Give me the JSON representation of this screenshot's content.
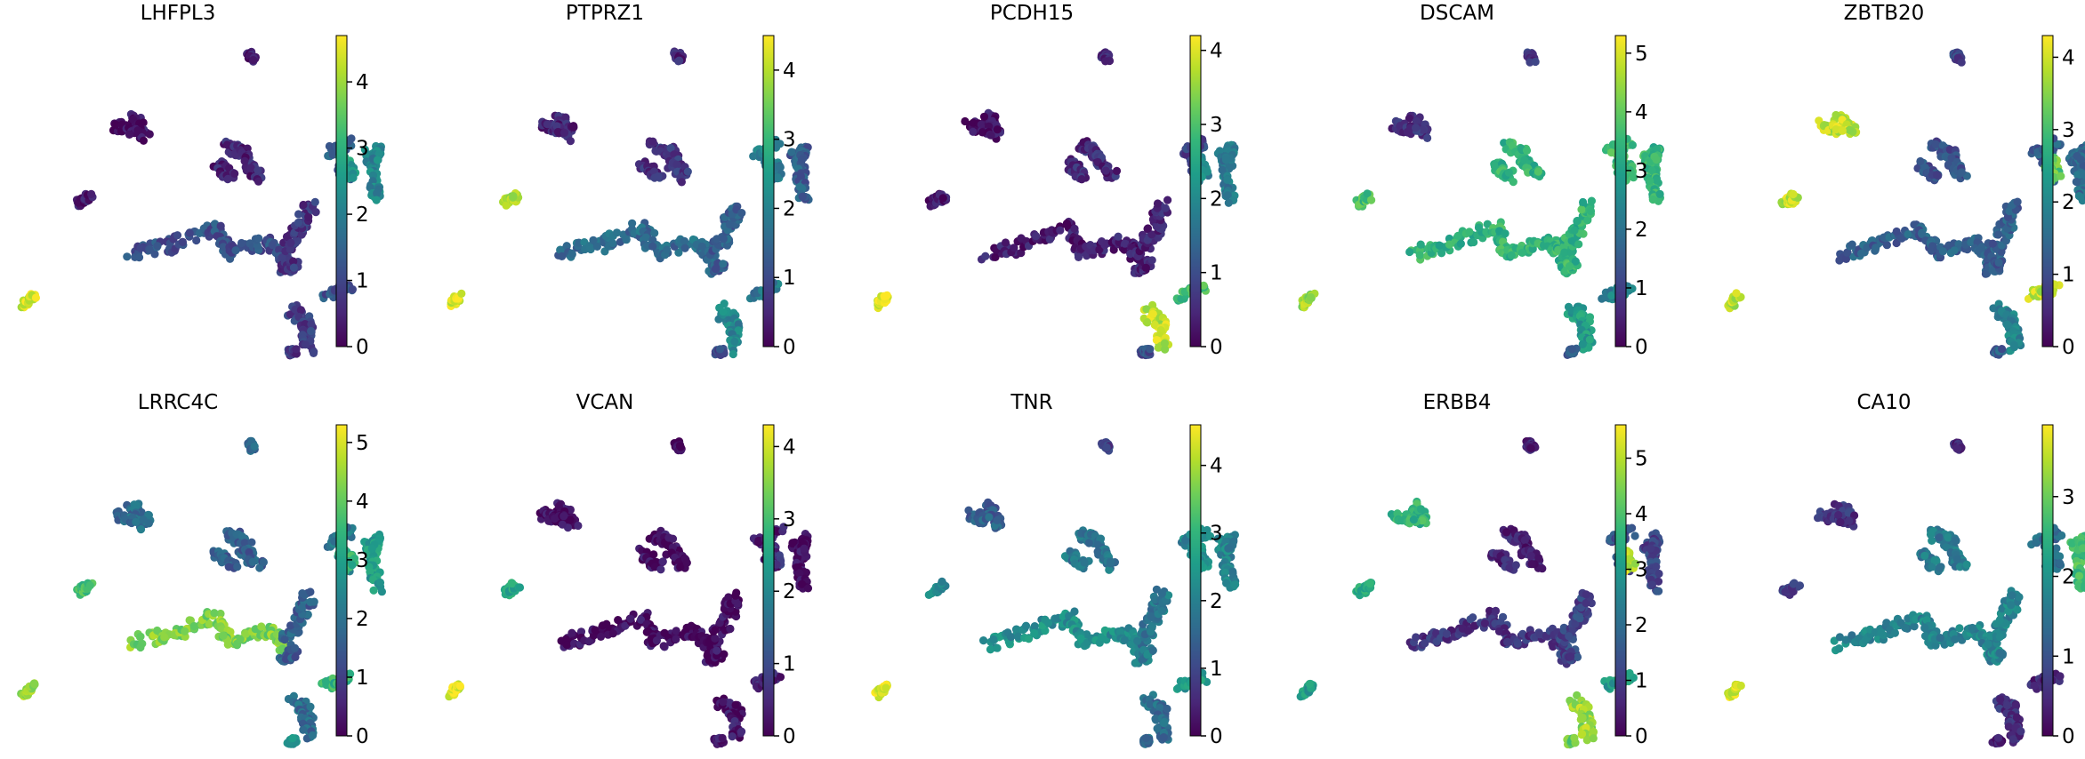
{
  "chart_data": {
    "type": "scatter",
    "description_free": true,
    "grid": "2x5",
    "colormap": "viridis",
    "colormap_stops": [
      "#440154",
      "#482878",
      "#3e4989",
      "#31688e",
      "#26828e",
      "#1f9e89",
      "#35b779",
      "#6ece58",
      "#b5de2b",
      "#fde725"
    ],
    "panels": [
      {
        "title": "LHFPL3",
        "vmin": 0,
        "vmax": 4.7,
        "ticks": [
          "0",
          "1",
          "2",
          "3",
          "4"
        ],
        "levels": {
          "A": 0.05,
          "B": 0.08,
          "C": 0.25,
          "D": 0.1,
          "E": 0.15,
          "F": 0.3,
          "G": 0.55,
          "H": 0.18,
          "I": 0.25,
          "J": 0.95,
          "K": 0.45,
          "L": 0.06,
          "M": 0.15
        }
      },
      {
        "title": "PTPRZ1",
        "vmin": 0,
        "vmax": 4.5,
        "ticks": [
          "0",
          "1",
          "2",
          "3",
          "4"
        ],
        "levels": {
          "A": 0.1,
          "B": 0.85,
          "C": 0.35,
          "D": 0.15,
          "E": 0.3,
          "F": 0.45,
          "G": 0.4,
          "H": 0.45,
          "I": 0.4,
          "J": 0.95,
          "K": 0.3,
          "L": 0.1,
          "M": 0.2
        }
      },
      {
        "title": "PCDH15",
        "vmin": 0,
        "vmax": 4.2,
        "ticks": [
          "0",
          "1",
          "2",
          "3",
          "4"
        ],
        "levels": {
          "A": 0.05,
          "B": 0.05,
          "C": 0.08,
          "D": 0.12,
          "E": 0.1,
          "F": 0.2,
          "G": 0.45,
          "H": 0.9,
          "I": 0.7,
          "J": 0.95,
          "K": 0.4,
          "L": 0.1,
          "M": 0.25
        }
      },
      {
        "title": "DSCAM",
        "vmin": 0,
        "vmax": 5.3,
        "ticks": [
          "0",
          "1",
          "2",
          "3",
          "4",
          "5"
        ],
        "levels": {
          "A": 0.15,
          "B": 0.7,
          "C": 0.65,
          "D": 0.65,
          "E": 0.65,
          "F": 0.7,
          "G": 0.7,
          "H": 0.55,
          "I": 0.45,
          "J": 0.85,
          "K": 0.65,
          "L": 0.15,
          "M": 0.3
        }
      },
      {
        "title": "ZBTB20",
        "vmin": 0,
        "vmax": 4.3,
        "ticks": [
          "0",
          "1",
          "2",
          "3",
          "4"
        ],
        "levels": {
          "A": 0.9,
          "B": 0.9,
          "C": 0.3,
          "D": 0.25,
          "E": 0.3,
          "F": 0.3,
          "G": 0.75,
          "H": 0.45,
          "I": 0.9,
          "J": 0.9,
          "K": 0.35,
          "L": 0.2,
          "M": 0.3
        }
      },
      {
        "title": "LRRC4C",
        "vmin": 0,
        "vmax": 5.3,
        "ticks": [
          "0",
          "1",
          "2",
          "3",
          "4",
          "5"
        ],
        "levels": {
          "A": 0.35,
          "B": 0.7,
          "C": 0.8,
          "D": 0.3,
          "E": 0.3,
          "F": 0.4,
          "G": 0.65,
          "H": 0.35,
          "I": 0.65,
          "J": 0.85,
          "K": 0.55,
          "L": 0.35,
          "M": 0.5
        }
      },
      {
        "title": "VCAN",
        "vmin": 0,
        "vmax": 4.3,
        "ticks": [
          "0",
          "1",
          "2",
          "3",
          "4"
        ],
        "levels": {
          "A": 0.03,
          "B": 0.6,
          "C": 0.03,
          "D": 0.03,
          "E": 0.03,
          "F": 0.06,
          "G": 0.15,
          "H": 0.06,
          "I": 0.1,
          "J": 0.95,
          "K": 0.03,
          "L": 0.03,
          "M": 0.05
        }
      },
      {
        "title": "TNR",
        "vmin": 0,
        "vmax": 4.6,
        "ticks": [
          "0",
          "1",
          "2",
          "3",
          "4"
        ],
        "levels": {
          "A": 0.3,
          "B": 0.5,
          "C": 0.5,
          "D": 0.4,
          "E": 0.4,
          "F": 0.45,
          "G": 0.5,
          "H": 0.35,
          "I": 0.55,
          "J": 0.95,
          "K": 0.45,
          "L": 0.2,
          "M": 0.35
        }
      },
      {
        "title": "ERBB4",
        "vmin": 0,
        "vmax": 5.6,
        "ticks": [
          "0",
          "1",
          "2",
          "3",
          "4",
          "5"
        ],
        "levels": {
          "A": 0.65,
          "B": 0.6,
          "C": 0.15,
          "D": 0.1,
          "E": 0.2,
          "F": 0.25,
          "G": 0.9,
          "H": 0.85,
          "I": 0.55,
          "J": 0.55,
          "K": 0.2,
          "L": 0.1,
          "M": 0.75
        }
      },
      {
        "title": "CA10",
        "vmin": 0,
        "vmax": 3.9,
        "ticks": [
          "0",
          "1",
          "2",
          "3"
        ],
        "levels": {
          "A": 0.15,
          "B": 0.2,
          "C": 0.45,
          "D": 0.4,
          "E": 0.45,
          "F": 0.35,
          "G": 0.35,
          "H": 0.15,
          "I": 0.1,
          "J": 0.95,
          "K": 0.7,
          "L": 0.1,
          "M": 0.1
        }
      }
    ]
  }
}
